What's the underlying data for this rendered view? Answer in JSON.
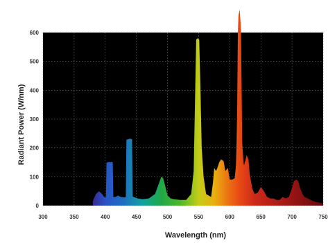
{
  "chart_data": {
    "type": "area",
    "title": "",
    "xlabel": "Wavelength (nm)",
    "ylabel": "Radiant Power (W/nm)",
    "xlim": [
      300,
      750
    ],
    "ylim": [
      0,
      600
    ],
    "x_ticks": [
      300,
      350,
      400,
      450,
      500,
      550,
      600,
      650,
      700,
      750
    ],
    "x_tick_labels": [
      "300",
      "350",
      "400",
      "450",
      "500",
      "550",
      "600",
      "650",
      "700",
      "750"
    ],
    "y_ticks": [
      0,
      100,
      200,
      300,
      400,
      500,
      600
    ],
    "grid": true,
    "background": "#000000",
    "fill": "visible-spectrum gradient by wavelength",
    "series": [
      {
        "x": [
          380,
          385,
          390,
          395,
          398,
          401,
          402,
          404,
          406,
          408,
          410,
          412,
          413,
          414,
          417,
          420,
          425,
          430,
          433,
          434,
          436,
          440,
          443,
          444,
          445,
          448,
          452,
          460,
          470,
          480,
          485,
          490,
          493,
          496,
          500,
          505,
          510,
          520,
          530,
          538,
          542,
          544,
          546,
          548,
          551,
          553,
          555,
          558,
          562,
          570,
          573,
          575,
          578,
          580,
          583,
          586,
          590,
          593,
          597,
          600,
          604,
          608,
          610,
          611,
          612,
          613,
          614,
          616,
          618,
          620,
          622,
          623,
          624,
          625,
          627,
          630,
          632,
          636,
          640,
          645,
          650,
          655,
          660,
          665,
          670,
          675,
          680,
          685,
          690,
          695,
          700,
          703,
          707,
          710,
          713,
          717,
          720,
          725,
          730,
          735,
          740,
          745,
          750
        ],
        "y": [
          15,
          40,
          50,
          40,
          30,
          28,
          150,
          150,
          152,
          150,
          152,
          150,
          30,
          30,
          30,
          35,
          30,
          28,
          30,
          228,
          230,
          232,
          230,
          32,
          30,
          28,
          25,
          22,
          25,
          40,
          70,
          100,
          95,
          70,
          35,
          25,
          22,
          20,
          20,
          40,
          120,
          350,
          575,
          580,
          575,
          400,
          200,
          100,
          40,
          30,
          80,
          130,
          120,
          130,
          150,
          160,
          155,
          120,
          130,
          90,
          90,
          95,
          140,
          220,
          350,
          600,
          660,
          680,
          610,
          220,
          150,
          140,
          150,
          155,
          175,
          160,
          110,
          60,
          40,
          45,
          65,
          50,
          30,
          25,
          25,
          20,
          20,
          30,
          25,
          30,
          60,
          85,
          90,
          85,
          60,
          40,
          30,
          25,
          20,
          15,
          12,
          10,
          8
        ]
      }
    ]
  }
}
